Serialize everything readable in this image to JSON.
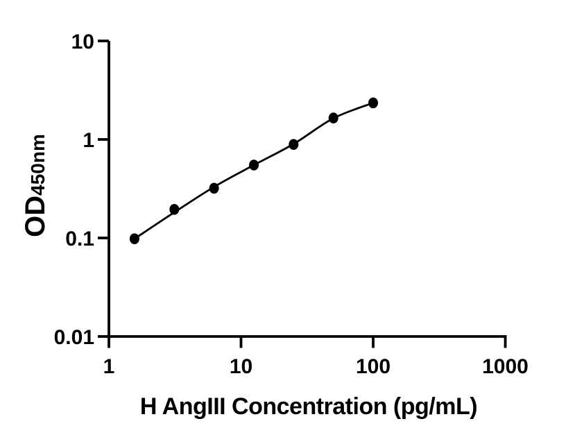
{
  "figure": {
    "background_color": "#ffffff",
    "foreground_color": "#000000"
  },
  "chart_data": {
    "type": "scatter",
    "title": "",
    "xlabel": "H AngIII Concentration (pg/mL)",
    "ylabel_main": "OD",
    "ylabel_subscript": "450nm",
    "x_scale": "log",
    "y_scale": "log",
    "xlim": [
      1,
      1000
    ],
    "ylim": [
      0.01,
      10
    ],
    "grid": false,
    "legend": false,
    "x_ticks": {
      "values": [
        1,
        10,
        100,
        1000
      ],
      "labels": [
        "1",
        "10",
        "100",
        "1000"
      ]
    },
    "y_ticks": {
      "values": [
        10,
        1,
        0.1,
        0.01
      ],
      "labels": [
        "10",
        "1",
        "0.1",
        "0.01"
      ]
    },
    "series": [
      {
        "marker": "filled-circle",
        "marker_color": "#000000",
        "line_color": "#000000",
        "x": [
          1.5625,
          3.125,
          6.25,
          12.5,
          25,
          50,
          100
        ],
        "y": [
          0.098,
          0.195,
          0.32,
          0.55,
          0.89,
          1.65,
          2.35
        ],
        "curve_y": [
          0.098,
          0.182,
          0.33,
          0.55,
          0.9,
          1.64,
          2.35
        ]
      }
    ]
  }
}
